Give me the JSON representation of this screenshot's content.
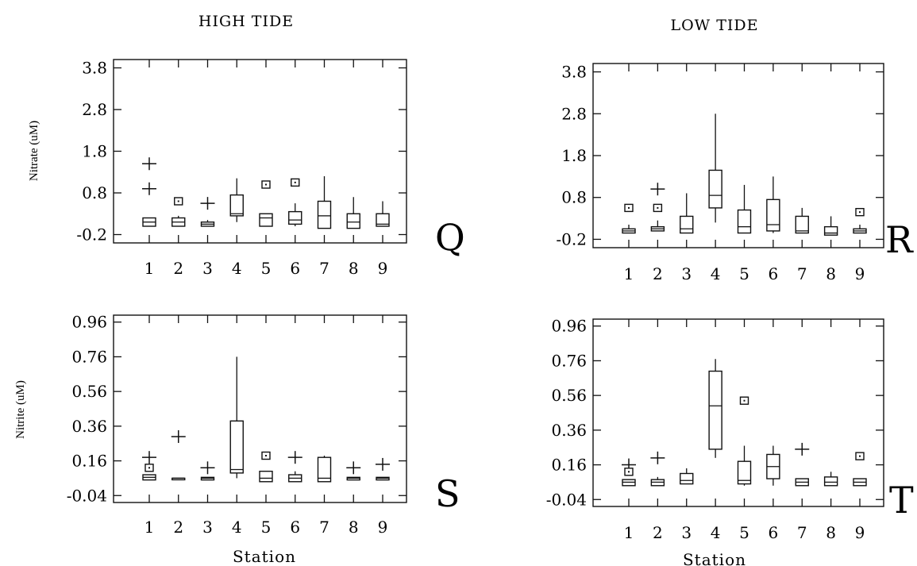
{
  "headers": {
    "left": "HIGH TIDE",
    "right": "LOW TIDE"
  },
  "chart_data": [
    {
      "type": "boxplot",
      "panel": "Q",
      "column": "HIGH TIDE",
      "ylabel": "Nitrate (uM)",
      "xlabel": "",
      "yticks": [
        "3.8",
        "2.8",
        "1.8",
        "0.8",
        "-0.2"
      ],
      "ylim": [
        -0.4,
        4.0
      ],
      "categories": [
        "1",
        "2",
        "3",
        "4",
        "5",
        "6",
        "7",
        "8",
        "9"
      ],
      "boxes": [
        {
          "station": "1",
          "q1": 0.0,
          "median": 0.1,
          "q3": 0.2,
          "whisker_low": 0.0,
          "whisker_high": 0.2,
          "outliers_plus": [
            1.5,
            0.9
          ],
          "outliers_square": [],
          "draw_box": true
        },
        {
          "station": "2",
          "q1": 0.0,
          "median": 0.1,
          "q3": 0.2,
          "whisker_low": 0.0,
          "whisker_high": 0.25,
          "outliers_plus": [],
          "outliers_square": [
            0.6
          ],
          "draw_box": true
        },
        {
          "station": "3",
          "q1": 0.0,
          "median": 0.05,
          "q3": 0.1,
          "whisker_low": 0.0,
          "whisker_high": 0.15,
          "outliers_plus": [
            0.55
          ],
          "outliers_square": [],
          "draw_box": true
        },
        {
          "station": "4",
          "q1": 0.25,
          "median": 0.3,
          "q3": 0.75,
          "whisker_low": 0.1,
          "whisker_high": 1.15,
          "outliers_plus": [],
          "outliers_square": [],
          "draw_box": true
        },
        {
          "station": "5",
          "q1": 0.0,
          "median": 0.2,
          "q3": 0.3,
          "whisker_low": 0.0,
          "whisker_high": 0.3,
          "outliers_plus": [],
          "outliers_square": [
            1.0
          ],
          "draw_box": true
        },
        {
          "station": "6",
          "q1": 0.05,
          "median": 0.15,
          "q3": 0.35,
          "whisker_low": 0.0,
          "whisker_high": 0.55,
          "outliers_plus": [],
          "outliers_square": [
            1.05
          ],
          "draw_box": true
        },
        {
          "station": "7",
          "q1": -0.05,
          "median": 0.25,
          "q3": 0.6,
          "whisker_low": -0.05,
          "whisker_high": 1.2,
          "outliers_plus": [],
          "outliers_square": [],
          "draw_box": true
        },
        {
          "station": "8",
          "q1": -0.05,
          "median": 0.1,
          "q3": 0.3,
          "whisker_low": -0.05,
          "whisker_high": 0.7,
          "outliers_plus": [],
          "outliers_square": [],
          "draw_box": true
        },
        {
          "station": "9",
          "q1": 0.0,
          "median": 0.05,
          "q3": 0.3,
          "whisker_low": 0.0,
          "whisker_high": 0.6,
          "outliers_plus": [],
          "outliers_square": [],
          "draw_box": true
        }
      ]
    },
    {
      "type": "boxplot",
      "panel": "R",
      "column": "LOW TIDE",
      "ylabel": "",
      "xlabel": "",
      "yticks": [
        "3.8",
        "2.8",
        "1.8",
        "0.8",
        "-0.2"
      ],
      "ylim": [
        -0.4,
        4.0
      ],
      "categories": [
        "1",
        "2",
        "3",
        "4",
        "5",
        "6",
        "7",
        "8",
        "9"
      ],
      "boxes": [
        {
          "station": "1",
          "q1": -0.05,
          "median": 0.0,
          "q3": 0.05,
          "whisker_low": -0.05,
          "whisker_high": 0.15,
          "outliers_plus": [],
          "outliers_square": [
            0.55
          ],
          "draw_box": true
        },
        {
          "station": "2",
          "q1": 0.0,
          "median": 0.05,
          "q3": 0.1,
          "whisker_low": 0.0,
          "whisker_high": 0.25,
          "outliers_plus": [
            1.0
          ],
          "outliers_square": [
            0.55
          ],
          "draw_box": true
        },
        {
          "station": "3",
          "q1": -0.05,
          "median": 0.05,
          "q3": 0.35,
          "whisker_low": -0.05,
          "whisker_high": 0.9,
          "outliers_plus": [],
          "outliers_square": [],
          "draw_box": true
        },
        {
          "station": "4",
          "q1": 0.55,
          "median": 0.85,
          "q3": 1.45,
          "whisker_low": 0.2,
          "whisker_high": 2.8,
          "outliers_plus": [],
          "outliers_square": [],
          "draw_box": true
        },
        {
          "station": "5",
          "q1": -0.05,
          "median": 0.1,
          "q3": 0.5,
          "whisker_low": -0.05,
          "whisker_high": 1.1,
          "outliers_plus": [],
          "outliers_square": [],
          "draw_box": true
        },
        {
          "station": "6",
          "q1": 0.0,
          "median": 0.15,
          "q3": 0.75,
          "whisker_low": -0.05,
          "whisker_high": 1.3,
          "outliers_plus": [],
          "outliers_square": [],
          "draw_box": true
        },
        {
          "station": "7",
          "q1": -0.05,
          "median": 0.0,
          "q3": 0.35,
          "whisker_low": -0.05,
          "whisker_high": 0.55,
          "outliers_plus": [],
          "outliers_square": [],
          "draw_box": true
        },
        {
          "station": "8",
          "q1": -0.1,
          "median": -0.05,
          "q3": 0.1,
          "whisker_low": -0.1,
          "whisker_high": 0.35,
          "outliers_plus": [],
          "outliers_square": [],
          "draw_box": true
        },
        {
          "station": "9",
          "q1": -0.05,
          "median": 0.0,
          "q3": 0.05,
          "whisker_low": -0.05,
          "whisker_high": 0.15,
          "outliers_plus": [],
          "outliers_square": [
            0.45
          ],
          "draw_box": true
        }
      ]
    },
    {
      "type": "boxplot",
      "panel": "S",
      "column": "HIGH TIDE",
      "ylabel": "Nitrite (uM)",
      "xlabel": "Station",
      "yticks": [
        "0.96",
        "0.76",
        "0.56",
        "0.36",
        "0.16",
        "-0.04"
      ],
      "ylim": [
        -0.08,
        1.0
      ],
      "categories": [
        "1",
        "2",
        "3",
        "4",
        "5",
        "6",
        "7",
        "8",
        "9"
      ],
      "boxes": [
        {
          "station": "1",
          "q1": 0.05,
          "median": 0.065,
          "q3": 0.08,
          "whisker_low": 0.05,
          "whisker_high": 0.08,
          "outliers_plus": [
            0.18
          ],
          "outliers_square": [
            0.12
          ],
          "draw_box": true
        },
        {
          "station": "2",
          "q1": 0.06,
          "median": 0.06,
          "q3": 0.06,
          "whisker_low": 0.06,
          "whisker_high": 0.06,
          "outliers_plus": [
            0.3
          ],
          "outliers_square": [],
          "draw_box": true
        },
        {
          "station": "3",
          "q1": 0.05,
          "median": 0.06,
          "q3": 0.065,
          "whisker_low": 0.05,
          "whisker_high": 0.065,
          "outliers_plus": [
            0.12
          ],
          "outliers_square": [],
          "draw_box": true
        },
        {
          "station": "4",
          "q1": 0.09,
          "median": 0.11,
          "q3": 0.39,
          "whisker_low": 0.06,
          "whisker_high": 0.76,
          "outliers_plus": [],
          "outliers_square": [],
          "draw_box": true
        },
        {
          "station": "5",
          "q1": 0.04,
          "median": 0.06,
          "q3": 0.1,
          "whisker_low": 0.04,
          "whisker_high": 0.1,
          "outliers_plus": [],
          "outliers_square": [
            0.19
          ],
          "draw_box": true
        },
        {
          "station": "6",
          "q1": 0.04,
          "median": 0.06,
          "q3": 0.08,
          "whisker_low": 0.04,
          "whisker_high": 0.1,
          "outliers_plus": [
            0.18
          ],
          "outliers_square": [],
          "draw_box": true
        },
        {
          "station": "7",
          "q1": 0.04,
          "median": 0.06,
          "q3": 0.18,
          "whisker_low": 0.04,
          "whisker_high": 0.19,
          "outliers_plus": [],
          "outliers_square": [],
          "draw_box": true
        },
        {
          "station": "8",
          "q1": 0.05,
          "median": 0.06,
          "q3": 0.065,
          "whisker_low": 0.05,
          "whisker_high": 0.065,
          "outliers_plus": [
            0.12
          ],
          "outliers_square": [],
          "draw_box": true
        },
        {
          "station": "9",
          "q1": 0.05,
          "median": 0.06,
          "q3": 0.065,
          "whisker_low": 0.05,
          "whisker_high": 0.065,
          "outliers_plus": [
            0.14
          ],
          "outliers_square": [],
          "draw_box": true
        }
      ]
    },
    {
      "type": "boxplot",
      "panel": "T",
      "column": "LOW TIDE",
      "ylabel": "",
      "xlabel": "Station",
      "yticks": [
        "0.96",
        "0.76",
        "0.56",
        "0.36",
        "0.16",
        "-0.04"
      ],
      "ylim": [
        -0.08,
        1.0
      ],
      "categories": [
        "1",
        "2",
        "3",
        "4",
        "5",
        "6",
        "7",
        "8",
        "9"
      ],
      "boxes": [
        {
          "station": "1",
          "q1": 0.04,
          "median": 0.06,
          "q3": 0.075,
          "whisker_low": 0.04,
          "whisker_high": 0.075,
          "outliers_plus": [
            0.16
          ],
          "outliers_square": [
            0.12
          ],
          "draw_box": true
        },
        {
          "station": "2",
          "q1": 0.04,
          "median": 0.06,
          "q3": 0.075,
          "whisker_low": 0.04,
          "whisker_high": 0.09,
          "outliers_plus": [
            0.2
          ],
          "outliers_square": [],
          "draw_box": true
        },
        {
          "station": "3",
          "q1": 0.05,
          "median": 0.07,
          "q3": 0.11,
          "whisker_low": 0.05,
          "whisker_high": 0.14,
          "outliers_plus": [],
          "outliers_square": [],
          "draw_box": true
        },
        {
          "station": "4",
          "q1": 0.25,
          "median": 0.5,
          "q3": 0.7,
          "whisker_low": 0.2,
          "whisker_high": 0.77,
          "outliers_plus": [],
          "outliers_square": [],
          "draw_box": true
        },
        {
          "station": "5",
          "q1": 0.05,
          "median": 0.07,
          "q3": 0.18,
          "whisker_low": 0.04,
          "whisker_high": 0.27,
          "outliers_plus": [],
          "outliers_square": [
            0.53
          ],
          "draw_box": true
        },
        {
          "station": "6",
          "q1": 0.08,
          "median": 0.15,
          "q3": 0.22,
          "whisker_low": 0.04,
          "whisker_high": 0.27,
          "outliers_plus": [],
          "outliers_square": [],
          "draw_box": true
        },
        {
          "station": "7",
          "q1": 0.04,
          "median": 0.06,
          "q3": 0.08,
          "whisker_low": 0.04,
          "whisker_high": 0.08,
          "outliers_plus": [
            0.25
          ],
          "outliers_square": [],
          "draw_box": true
        },
        {
          "station": "8",
          "q1": 0.04,
          "median": 0.06,
          "q3": 0.09,
          "whisker_low": 0.04,
          "whisker_high": 0.12,
          "outliers_plus": [],
          "outliers_square": [],
          "draw_box": true
        },
        {
          "station": "9",
          "q1": 0.04,
          "median": 0.06,
          "q3": 0.08,
          "whisker_low": 0.04,
          "whisker_high": 0.08,
          "outliers_plus": [],
          "outliers_square": [
            0.21
          ],
          "draw_box": true
        }
      ]
    }
  ]
}
